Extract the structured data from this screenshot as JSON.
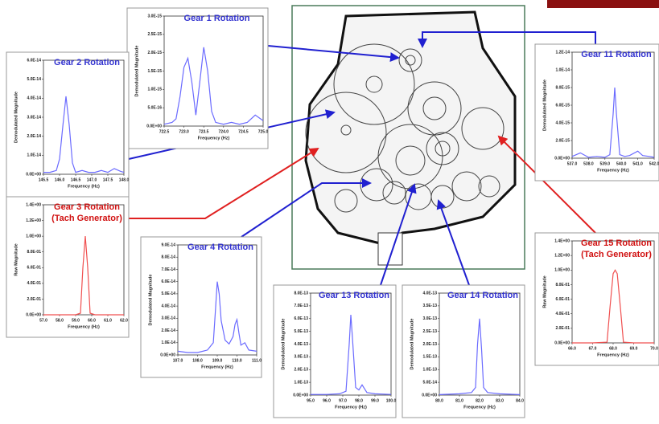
{
  "chart_data": [
    {
      "type": "line",
      "title": "Gear 1 Rotation",
      "title_color": "#3434d0",
      "xlabel": "Frequency (Hz)",
      "ylabel": "Demodulated Magnitude",
      "color": "#6b6bff",
      "x": [
        722.5,
        722.7,
        722.8,
        722.9,
        723.0,
        723.1,
        723.2,
        723.3,
        723.4,
        723.5,
        723.6,
        723.7,
        723.8,
        724.0,
        724.2,
        724.4,
        724.6,
        724.8,
        725.0
      ],
      "values": [
        5e-17,
        1e-16,
        2e-16,
        8e-16,
        1.6e-15,
        1.85e-15,
        1.2e-15,
        3e-16,
        1.2e-15,
        2.15e-15,
        1.5e-15,
        4e-16,
        1e-16,
        5e-17,
        1e-16,
        5e-17,
        1e-16,
        3e-16,
        1.5e-16
      ],
      "xlim": [
        722.5,
        725.0
      ],
      "xticks": [
        722.5,
        {
          "value": 723,
          "label": "723.0"
        },
        723.5,
        {
          "value": 724,
          "label": "724.0"
        },
        724.5,
        {
          "value": 725,
          "label": "725.0"
        }
      ],
      "ylim": [
        0,
        3e-15
      ],
      "yticks": [
        {
          "value": 0,
          "label": "0.0E+00"
        },
        {
          "value": 5e-16,
          "label": "5.0E-16"
        },
        {
          "value": 1e-15,
          "label": "1.0E-15"
        },
        {
          "value": 1.5e-15,
          "label": "1.5E-15"
        },
        {
          "value": 2e-15,
          "label": "2.0E-15"
        },
        {
          "value": 2.5e-15,
          "label": "2.5E-15"
        },
        {
          "value": 3e-15,
          "label": "3.0E-15"
        }
      ]
    },
    {
      "type": "line",
      "title": "Gear 2 Rotation",
      "title_color": "#3434d0",
      "xlabel": "Frequency (Hz)",
      "ylabel": "Demodulated Magnitude",
      "color": "#6b6bff",
      "x": [
        145.5,
        145.7,
        145.9,
        146.0,
        146.1,
        146.2,
        146.3,
        146.4,
        146.5,
        146.7,
        146.9,
        147.1,
        147.3,
        147.5,
        147.7,
        147.9,
        148.0
      ],
      "values": [
        1e-15,
        1e-15,
        2e-15,
        8e-15,
        2.5e-14,
        4.1e-14,
        2.6e-14,
        6e-15,
        1e-15,
        2e-15,
        1e-15,
        1e-15,
        2e-15,
        1e-15,
        3e-15,
        1.5e-15,
        1e-15
      ],
      "xlim": [
        145.5,
        148.0
      ],
      "xticks": [
        145.5,
        {
          "value": 146,
          "label": "146.0"
        },
        146.5,
        {
          "value": 147,
          "label": "147.0"
        },
        147.5,
        {
          "value": 148,
          "label": "148.0"
        }
      ],
      "ylim": [
        0,
        6e-14
      ],
      "yticks": [
        {
          "value": 0,
          "label": "0.0E+00"
        },
        {
          "value": 1e-14,
          "label": "1.0E-14"
        },
        {
          "value": 2e-14,
          "label": "2.0E-14"
        },
        {
          "value": 3e-14,
          "label": "3.0E-14"
        },
        {
          "value": 4e-14,
          "label": "4.0E-14"
        },
        {
          "value": 5e-14,
          "label": "5.0E-14"
        },
        {
          "value": 6e-14,
          "label": "6.0E-14"
        }
      ]
    },
    {
      "type": "line",
      "title": "Gear 3 Rotation",
      "subtitle": "(Tach Generator)",
      "title_color": "#d01010",
      "xlabel": "Frequency (Hz)",
      "ylabel": "Raw Magnitude",
      "color": "#f05050",
      "x": [
        57,
        58,
        59,
        59.3,
        59.45,
        59.6,
        59.75,
        59.9,
        60.2,
        61,
        62
      ],
      "values": [
        0,
        0,
        0,
        0.02,
        0.6,
        1.0,
        0.6,
        0.02,
        0,
        0,
        0
      ],
      "xlim": [
        57,
        62
      ],
      "xticks": [
        {
          "value": 57,
          "label": "57.0"
        },
        {
          "value": 58,
          "label": "58.0"
        },
        {
          "value": 59,
          "label": "59.0"
        },
        {
          "value": 60,
          "label": "60.0"
        },
        {
          "value": 61,
          "label": "61.0"
        },
        {
          "value": 62,
          "label": "62.0"
        }
      ],
      "ylim": [
        0,
        1.4
      ],
      "yticks": [
        {
          "value": 0,
          "label": "0.0E+00"
        },
        {
          "value": 0.2,
          "label": "2.0E-01"
        },
        {
          "value": 0.4,
          "label": "4.0E-01"
        },
        {
          "value": 0.6,
          "label": "6.0E-01"
        },
        {
          "value": 0.8,
          "label": "8.0E-01"
        },
        {
          "value": 1.0,
          "label": "1.0E+00"
        },
        {
          "value": 1.2,
          "label": "1.2E+00"
        },
        {
          "value": 1.4,
          "label": "1.4E+00"
        }
      ]
    },
    {
      "type": "line",
      "title": "Gear 4 Rotation",
      "title_color": "#3434d0",
      "xlabel": "Frequency (Hz)",
      "ylabel": "Demodulated Magnitude",
      "color": "#6b6bff",
      "x": [
        107,
        107.5,
        108,
        108.5,
        108.8,
        108.9,
        109,
        109.1,
        109.2,
        109.4,
        109.6,
        109.8,
        109.9,
        110,
        110.1,
        110.2,
        110.4,
        110.6,
        111
      ],
      "values": [
        3e-15,
        2e-15,
        2e-15,
        4e-15,
        1e-14,
        3.5e-14,
        6e-14,
        5e-14,
        2.8e-14,
        1.2e-14,
        9e-15,
        1.5e-14,
        2.5e-14,
        2.9e-14,
        1.8e-14,
        8e-15,
        1e-14,
        4e-15,
        3e-15
      ],
      "xlim": [
        107,
        111
      ],
      "xticks": [
        {
          "value": 107,
          "label": "107.0"
        },
        {
          "value": 108,
          "label": "108.0"
        },
        {
          "value": 109,
          "label": "109.0"
        },
        {
          "value": 110,
          "label": "110.0"
        },
        {
          "value": 111,
          "label": "111.0"
        }
      ],
      "ylim": [
        0,
        9e-14
      ],
      "yticks": [
        {
          "value": 0,
          "label": "0.0E+00"
        },
        {
          "value": 1e-14,
          "label": "1.0E-14"
        },
        {
          "value": 2e-14,
          "label": "2.0E-14"
        },
        {
          "value": 3e-14,
          "label": "3.0E-14"
        },
        {
          "value": 4e-14,
          "label": "4.0E-14"
        },
        {
          "value": 5e-14,
          "label": "5.0E-14"
        },
        {
          "value": 6e-14,
          "label": "6.0E-14"
        },
        {
          "value": 7e-14,
          "label": "7.0E-14"
        },
        {
          "value": 8e-14,
          "label": "8.0E-14"
        },
        {
          "value": 9e-14,
          "label": "9.0E-14"
        }
      ]
    },
    {
      "type": "line",
      "title": "Gear 13 Rotation",
      "title_color": "#3434d0",
      "xlabel": "Frequency (Hz)",
      "ylabel": "Demodulated Magnitude",
      "color": "#6b6bff",
      "x": [
        95,
        96,
        96.8,
        97.2,
        97.4,
        97.5,
        97.6,
        97.8,
        98,
        98.2,
        98.5,
        99,
        100
      ],
      "values": [
        5e-15,
        5e-15,
        1e-14,
        3e-14,
        4e-13,
        6.3e-13,
        4.5e-13,
        6e-14,
        4e-14,
        8e-14,
        2e-14,
        1e-14,
        5e-15
      ],
      "xlim": [
        95,
        100
      ],
      "xticks": [
        {
          "value": 95,
          "label": "95.0"
        },
        {
          "value": 96,
          "label": "96.0"
        },
        {
          "value": 97,
          "label": "97.0"
        },
        {
          "value": 98,
          "label": "98.0"
        },
        {
          "value": 99,
          "label": "99.0"
        },
        {
          "value": 100,
          "label": "100.0"
        }
      ],
      "ylim": [
        0,
        8e-13
      ],
      "yticks": [
        {
          "value": 0,
          "label": "0.0E+00"
        },
        {
          "value": 1e-13,
          "label": "1.0E-13"
        },
        {
          "value": 2e-13,
          "label": "2.0E-13"
        },
        {
          "value": 3e-13,
          "label": "3.0E-13"
        },
        {
          "value": 4e-13,
          "label": "4.0E-13"
        },
        {
          "value": 5e-13,
          "label": "5.0E-13"
        },
        {
          "value": 6e-13,
          "label": "6.0E-13"
        },
        {
          "value": 7e-13,
          "label": "7.0E-13"
        },
        {
          "value": 8e-13,
          "label": "8.0E-13"
        }
      ]
    },
    {
      "type": "line",
      "title": "Gear 14 Rotation",
      "title_color": "#3434d0",
      "xlabel": "Frequency (Hz)",
      "ylabel": "Demodulated Magnitude",
      "color": "#6b6bff",
      "x": [
        80,
        81,
        81.6,
        81.8,
        81.9,
        82,
        82.1,
        82.2,
        82.4,
        83,
        84
      ],
      "values": [
        2e-15,
        5e-15,
        1e-14,
        3e-14,
        2e-13,
        3e-13,
        1.8e-13,
        3e-14,
        1e-14,
        5e-15,
        2e-15
      ],
      "xlim": [
        80,
        84
      ],
      "xticks": [
        {
          "value": 80,
          "label": "80.0"
        },
        {
          "value": 81,
          "label": "81.0"
        },
        {
          "value": 82,
          "label": "82.0"
        },
        {
          "value": 83,
          "label": "83.0"
        },
        {
          "value": 84,
          "label": "84.0"
        }
      ],
      "ylim": [
        0,
        4e-13
      ],
      "yticks": [
        {
          "value": 0,
          "label": "0.0E+00"
        },
        {
          "value": 5e-14,
          "label": "5.0E-14"
        },
        {
          "value": 1e-13,
          "label": "1.0E-13"
        },
        {
          "value": 1.5e-13,
          "label": "1.5E-13"
        },
        {
          "value": 2e-13,
          "label": "2.0E-13"
        },
        {
          "value": 2.5e-13,
          "label": "2.5E-13"
        },
        {
          "value": 3e-13,
          "label": "3.0E-13"
        },
        {
          "value": 3.5e-13,
          "label": "3.5E-13"
        },
        {
          "value": 4e-13,
          "label": "4.0E-13"
        }
      ]
    },
    {
      "type": "line",
      "title": "Gear 11 Rotation",
      "title_color": "#3434d0",
      "xlabel": "Frequency (Hz)",
      "ylabel": "Demodulated Magnitude",
      "color": "#6b6bff",
      "x": [
        537,
        537.5,
        538,
        538.5,
        539,
        539.3,
        539.5,
        539.6,
        539.7,
        539.9,
        540.2,
        540.5,
        541,
        541.3,
        541.7,
        542
      ],
      "values": [
        2e-16,
        6e-16,
        1e-16,
        2e-16,
        1e-16,
        4e-16,
        5e-15,
        8e-15,
        5e-15,
        4e-16,
        2e-16,
        3e-16,
        8e-16,
        3e-16,
        2e-16,
        1e-16
      ],
      "xlim": [
        537,
        542
      ],
      "xticks": [
        {
          "value": 537,
          "label": "537.0"
        },
        {
          "value": 538,
          "label": "538.0"
        },
        {
          "value": 539,
          "label": "539.0"
        },
        {
          "value": 540,
          "label": "540.0"
        },
        {
          "value": 541,
          "label": "541.0"
        },
        {
          "value": 542,
          "label": "542.0"
        }
      ],
      "ylim": [
        0,
        1.2e-14
      ],
      "yticks": [
        {
          "value": 0,
          "label": "0.0E+00"
        },
        {
          "value": 2e-15,
          "label": "2.0E-15"
        },
        {
          "value": 4e-15,
          "label": "4.0E-15"
        },
        {
          "value": 6e-15,
          "label": "6.0E-15"
        },
        {
          "value": 8e-15,
          "label": "8.0E-15"
        },
        {
          "value": 1e-14,
          "label": "1.0E-14"
        },
        {
          "value": 1.2e-14,
          "label": "1.2E-14"
        }
      ]
    },
    {
      "type": "line",
      "title": "Gear 15 Rotation",
      "subtitle": "(Tach Generator)",
      "title_color": "#d01010",
      "xlabel": "Frequency (Hz)",
      "ylabel": "Raw Magnitude",
      "color": "#f05050",
      "x": [
        66,
        67,
        67.7,
        67.85,
        68,
        68.1,
        68.2,
        68.35,
        68.5,
        69,
        70
      ],
      "values": [
        0,
        0,
        0.01,
        0.5,
        0.95,
        1.0,
        0.95,
        0.5,
        0.01,
        0,
        0
      ],
      "xlim": [
        66,
        70
      ],
      "xticks": [
        {
          "value": 66,
          "label": "66.0"
        },
        {
          "value": 67,
          "label": "67.0"
        },
        {
          "value": 68,
          "label": "68.0"
        },
        {
          "value": 69,
          "label": "69.0"
        },
        {
          "value": 70,
          "label": "70.0"
        }
      ],
      "ylim": [
        0,
        1.4
      ],
      "yticks": [
        {
          "value": 0,
          "label": "0.0E+00"
        },
        {
          "value": 0.2,
          "label": "2.0E-01"
        },
        {
          "value": 0.4,
          "label": "4.0E-01"
        },
        {
          "value": 0.6,
          "label": "6.0E-01"
        },
        {
          "value": 0.8,
          "label": "8.0E-01"
        },
        {
          "value": 1.0,
          "label": "1.0E+00"
        },
        {
          "value": 1.2,
          "label": "1.2E+00"
        },
        {
          "value": 1.4,
          "label": "1.4E+00"
        }
      ]
    }
  ]
}
